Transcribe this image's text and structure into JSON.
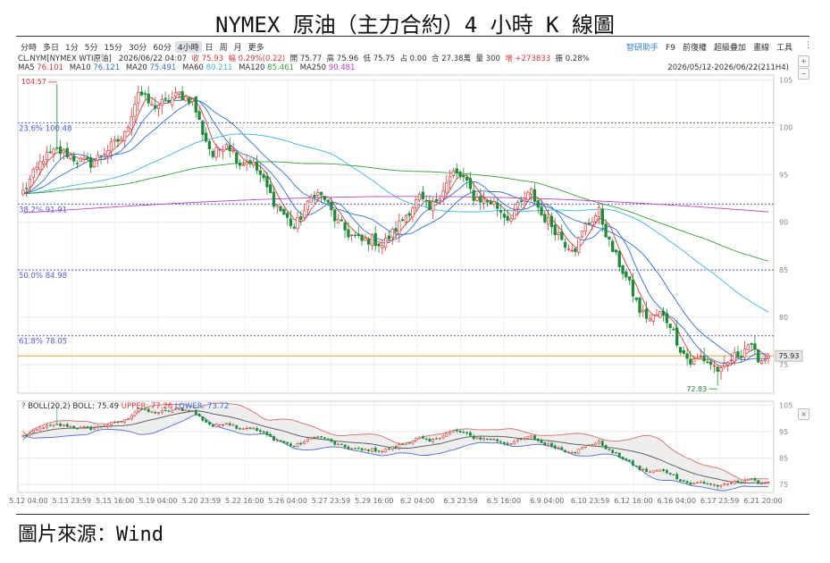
{
  "title": "NYMEX 原油（主力合約）4 小時 K 線圖",
  "source": "圖片來源：Wind",
  "toolbar": {
    "periods": [
      "分時",
      "多日",
      "1分",
      "5分",
      "15分",
      "30分",
      "60分",
      "4小時",
      "日",
      "周",
      "月",
      "更多"
    ],
    "active_period": "4小時",
    "right_items": [
      "智研助手",
      "F9",
      "前復權",
      "超級疊加",
      "畫線",
      "工具"
    ],
    "menu": "⋮"
  },
  "info_bar": {
    "symbol": "CL.NYM[NYMEX WTI原油]",
    "datetime": "2026/06/22 04:07",
    "close": "收 75.93",
    "change": "幅 0.29%(0.22)",
    "open": "開 75.77",
    "high": "高 75.96",
    "low": "低 75.75",
    "pct": "占 0.00",
    "amount": "合 27.38萬",
    "volume": "量 300",
    "oi_change": "增 +273833",
    "amplitude": "振 0.28%"
  },
  "ma_labels": [
    {
      "name": "MA5",
      "value": "76.101",
      "color": "#d83b3b"
    },
    {
      "name": "MA10",
      "value": "76.121",
      "color": "#2f6fd4"
    },
    {
      "name": "MA20",
      "value": "75.491",
      "color": "#2f6fd4"
    },
    {
      "name": "MA60",
      "value": "80.211",
      "color": "#3fb6d4"
    },
    {
      "name": "MA120",
      "value": "85.461",
      "color": "#3a9e3a"
    },
    {
      "name": "MA250",
      "value": "90.481",
      "color": "#c040c0"
    }
  ],
  "range_label": "2026/05/12-2026/06/22(211H4)",
  "boll_labels": {
    "prefix": "?",
    "main": "BOLL(20,2) BOLL: 75.49",
    "upper": "UPPER: 77.26",
    "lower": "LOWER: 73.72"
  },
  "colors": {
    "up": "#d83b3b",
    "down": "#1f8a3a",
    "fib": "#5060d8",
    "last_price": "#f0a040",
    "grid": "#e8e8e8"
  },
  "chart_data": [
    {
      "type": "candlestick",
      "title": "",
      "y_ticks": [
        75,
        80,
        85,
        90,
        95,
        100,
        105
      ],
      "ylim": [
        72.0,
        105.5
      ],
      "x_tick_labels": [
        "5.12 04:00",
        "5.13 23:59",
        "5.15 16:00",
        "5.19 04:00",
        "5.20 23:59",
        "5.22 16:00",
        "5.26 04:00",
        "5.27 23:59",
        "5.29 16:00",
        "6.2 04:00",
        "6.3 23:59",
        "6.5 16:00",
        "6.9 04:00",
        "6.10 23:59",
        "6.12 16:00",
        "6.16 04:00",
        "6.17 23:59",
        "6.21 20:00"
      ],
      "fib_levels": [
        {
          "label": "23.6%",
          "value": 100.48
        },
        {
          "label": "38.2%",
          "value": 91.91
        },
        {
          "label": "50.0%",
          "value": 84.98
        },
        {
          "label": "61.8%",
          "value": 78.05
        }
      ],
      "last_price": 75.93,
      "annotations": [
        {
          "text": "104.57",
          "x_index": 10,
          "value": 104.57
        },
        {
          "text": "72.83",
          "x_index": 205,
          "value": 72.83
        }
      ],
      "anchors": [
        [
          0,
          93.2
        ],
        [
          6,
          96.8
        ],
        [
          10,
          97.5
        ],
        [
          13,
          97.2
        ],
        [
          16,
          96.5
        ],
        [
          20,
          96.2
        ],
        [
          24,
          97.4
        ],
        [
          30,
          99.2
        ],
        [
          34,
          103.8
        ],
        [
          38,
          102.2
        ],
        [
          42,
          102.6
        ],
        [
          46,
          103.5
        ],
        [
          50,
          102.8
        ],
        [
          53,
          99.5
        ],
        [
          56,
          97.0
        ],
        [
          60,
          98.5
        ],
        [
          64,
          96.2
        ],
        [
          67,
          96.5
        ],
        [
          70,
          95.0
        ],
        [
          74,
          92.2
        ],
        [
          77,
          90.8
        ],
        [
          80,
          89.4
        ],
        [
          84,
          91.8
        ],
        [
          86,
          93.2
        ],
        [
          89,
          92.5
        ],
        [
          92,
          90.4
        ],
        [
          96,
          88.8
        ],
        [
          100,
          88.0
        ],
        [
          103,
          88.2
        ],
        [
          106,
          87.6
        ],
        [
          110,
          89.3
        ],
        [
          113,
          90.8
        ],
        [
          117,
          92.6
        ],
        [
          120,
          91.2
        ],
        [
          124,
          93.6
        ],
        [
          127,
          95.2
        ],
        [
          130,
          94.6
        ],
        [
          133,
          92.7
        ],
        [
          136,
          92.3
        ],
        [
          139,
          92.0
        ],
        [
          143,
          90.4
        ],
        [
          146,
          91.6
        ],
        [
          150,
          93.2
        ],
        [
          153,
          90.8
        ],
        [
          156,
          89.7
        ],
        [
          160,
          87.8
        ],
        [
          163,
          87.3
        ],
        [
          166,
          89.6
        ],
        [
          170,
          91.1
        ],
        [
          173,
          87.8
        ],
        [
          176,
          85.6
        ],
        [
          179,
          83.4
        ],
        [
          182,
          80.7
        ],
        [
          185,
          79.8
        ],
        [
          188,
          80.4
        ],
        [
          191,
          79.3
        ],
        [
          194,
          76.7
        ],
        [
          197,
          75.2
        ],
        [
          200,
          75.8
        ],
        [
          203,
          75.1
        ],
        [
          206,
          74.2
        ],
        [
          209,
          75.6
        ],
        [
          212,
          76.3
        ],
        [
          214,
          77.2
        ],
        [
          216,
          76.1
        ],
        [
          218,
          75.5
        ],
        [
          220,
          75.93
        ]
      ],
      "series": [
        {
          "name": "MA5",
          "period": 5
        },
        {
          "name": "MA10",
          "period": 10
        },
        {
          "name": "MA20",
          "period": 20
        },
        {
          "name": "MA60",
          "period": 60
        },
        {
          "name": "MA120",
          "period": 120
        },
        {
          "name": "MA250",
          "period": 250
        }
      ],
      "ma250_start": 91.0,
      "ma250_end": 90.48
    },
    {
      "type": "line",
      "title": "",
      "y_ticks": [
        75,
        85,
        95,
        105
      ],
      "ylim": [
        72.0,
        106.5
      ],
      "series": [
        {
          "name": "BOLL",
          "period": 20,
          "k": 2
        }
      ]
    }
  ]
}
